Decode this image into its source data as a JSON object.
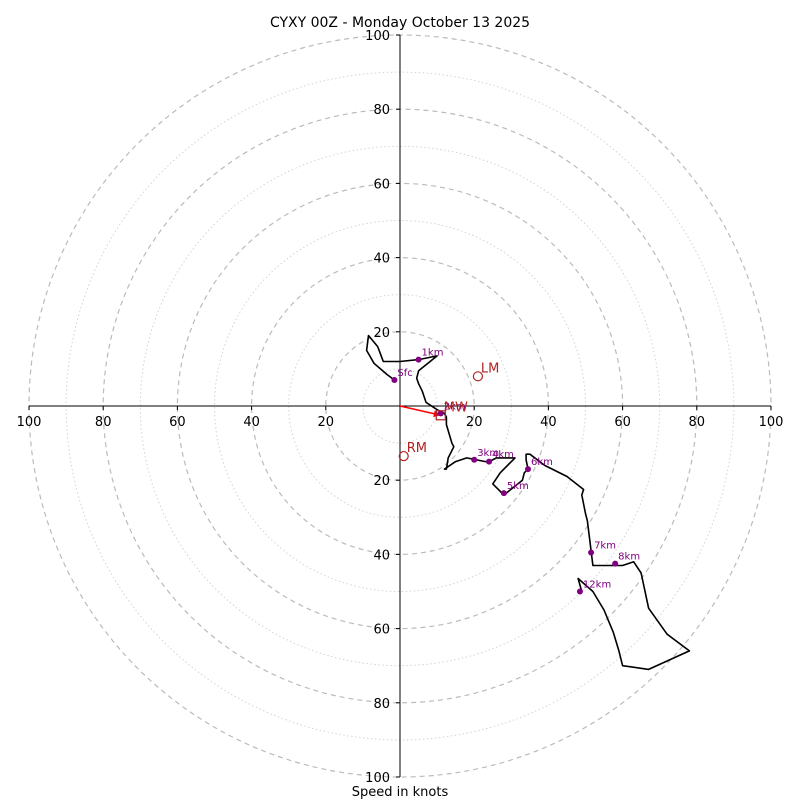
{
  "chart_data": {
    "type": "line",
    "title": "CYXY 00Z - Monday October 13 2025",
    "xlabel": "Speed in knots",
    "ylabel": "",
    "xlim": [
      -100,
      100
    ],
    "ylim": [
      -100,
      100
    ],
    "x_ticks": [
      "100",
      "80",
      "60",
      "40",
      "20",
      "20",
      "40",
      "60",
      "80",
      "100"
    ],
    "y_ticks": [
      "100",
      "80",
      "60",
      "40",
      "20",
      "20",
      "40",
      "60",
      "80",
      "100"
    ],
    "grid": true,
    "colors": {
      "hodograph": "#000000",
      "height_points": "#800080",
      "motion_markers": "#b22222",
      "shear_vector": "#ff0000",
      "major_rings": "#bbbbbb",
      "minor_rings": "#d3d3d3"
    },
    "hodograph": {
      "u": [
        -1.5,
        -3.5,
        -7,
        -9,
        -8.5,
        -6,
        -4.5,
        0,
        5,
        10,
        5,
        4.5,
        5,
        6,
        7,
        10,
        12,
        12.5,
        12.5,
        14,
        14.5,
        13,
        12.5,
        12,
        15,
        18,
        23,
        24,
        26,
        31,
        27,
        25,
        28,
        33,
        33.5,
        34.5,
        34,
        34,
        35,
        39,
        45,
        49.5,
        49,
        50,
        50.5,
        52,
        60,
        63,
        65,
        67,
        72,
        78,
        67,
        60,
        59,
        57.5,
        55,
        52,
        48,
        49
      ],
      "v": [
        7,
        8.5,
        11.5,
        15,
        19,
        16,
        12,
        12,
        12.5,
        13.5,
        9.5,
        7.5,
        6,
        4,
        1,
        -1,
        -2,
        -3,
        -5,
        -10,
        -11,
        -14,
        -17,
        -17,
        -15,
        -14,
        -15,
        -15,
        -14,
        -14,
        -18,
        -21,
        -24,
        -20,
        -18,
        -17,
        -14.5,
        -13,
        -13,
        -16,
        -19,
        -22.5,
        -24,
        -29,
        -31,
        -43,
        -43,
        -42,
        -45,
        -54.5,
        -61.5,
        -66,
        -71,
        -70,
        -66,
        -61,
        -55,
        -50,
        -46.5,
        -50
      ]
    },
    "height_points": [
      {
        "label": "Sfc",
        "u": -1.5,
        "v": 7
      },
      {
        "label": "1km",
        "u": 5,
        "v": 12.5
      },
      {
        "label": "2km",
        "u": 11,
        "v": -2
      },
      {
        "label": "3km",
        "u": 20,
        "v": -14.5
      },
      {
        "label": "4km",
        "u": 24,
        "v": -15
      },
      {
        "label": "5km",
        "u": 28,
        "v": -23.5
      },
      {
        "label": "6km",
        "u": 34.5,
        "v": -17
      },
      {
        "label": "7km",
        "u": 51.5,
        "v": -39.5
      },
      {
        "label": "8km",
        "u": 58,
        "v": -42.5
      },
      {
        "label": "12km",
        "u": 48.5,
        "v": -50
      }
    ],
    "storm_motion": [
      {
        "label": "LM",
        "u": 21,
        "v": 8,
        "marker": "circle"
      },
      {
        "label": "RM",
        "u": 1,
        "v": -13.5,
        "marker": "circle"
      },
      {
        "label": "MW",
        "u": 11,
        "v": -2.5,
        "marker": "square"
      }
    ],
    "shear_vector": {
      "u0": 0,
      "v0": 0,
      "u1": 11,
      "v1": -2.5
    }
  }
}
